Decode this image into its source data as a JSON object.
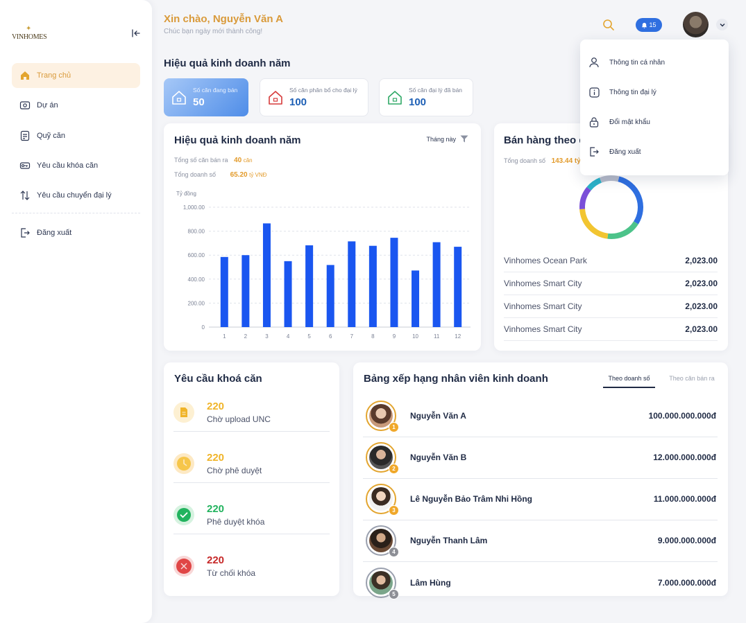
{
  "brand": {
    "logo_text": "VINHOMES"
  },
  "sidebar": {
    "items": [
      {
        "label": "Trang chủ",
        "icon": "home-icon",
        "active": true
      },
      {
        "label": "Dự án",
        "icon": "project-icon"
      },
      {
        "label": "Quỹ căn",
        "icon": "fund-icon"
      },
      {
        "label": "Yêu cầu khóa căn",
        "icon": "key-icon"
      },
      {
        "label": "Yêu cầu chuyển đại lý",
        "icon": "transfer-icon"
      }
    ],
    "logout": "Đăng xuất"
  },
  "header": {
    "greeting": "Xin chào, Nguyễn Văn A",
    "subtitle": "Chúc bạn ngày mới thành công!",
    "notification_count": "15"
  },
  "overview": {
    "title": "Hiệu quả kinh doanh năm",
    "stats": [
      {
        "label": "Số căn đang bán",
        "value": "50"
      },
      {
        "label": "Số căn phân bổ cho đại lý",
        "value": "100"
      },
      {
        "label": "Số căn đại lý đã bán",
        "value": "100"
      }
    ]
  },
  "business_chart": {
    "title": "Hiệu quả kinh doanh năm",
    "filter": "Tháng này",
    "total_units_label": "Tổng số căn bán ra",
    "total_units_value": "40",
    "total_units_unit": "căn",
    "total_revenue_label": "Tổng doanh số",
    "total_revenue_value": "65.20",
    "total_revenue_unit": "tỷ VNĐ"
  },
  "chart_data": {
    "type": "bar",
    "ylabel": "Tỷ đồng",
    "categories": [
      "1",
      "2",
      "3",
      "4",
      "5",
      "6",
      "7",
      "8",
      "9",
      "10",
      "11",
      "12"
    ],
    "values": [
      585,
      600,
      865,
      550,
      682,
      518,
      715,
      678,
      745,
      472,
      708,
      670
    ],
    "yticks": [
      "0",
      "200.00",
      "400.00",
      "600.00",
      "800.00",
      "1,000.00"
    ],
    "ylim": [
      0,
      1000
    ],
    "color": "#1a56f0"
  },
  "sales": {
    "title": "Bán hàng theo dự án",
    "total_label": "Tổng doanh số",
    "total_value": "143.44 tỷ",
    "donut": [
      {
        "value": 30,
        "color": "#2f6fe0"
      },
      {
        "value": 18,
        "color": "#4cc38a"
      },
      {
        "value": 22,
        "color": "#f2c531"
      },
      {
        "value": 12,
        "color": "#7b4fd8"
      },
      {
        "value": 8,
        "color": "#2bb3c9"
      },
      {
        "value": 10,
        "color": "#b7bccb"
      }
    ],
    "projects": [
      {
        "name": "Vinhomes Ocean Park",
        "value": "2,023.00"
      },
      {
        "name": "Vinhomes Smart City",
        "value": "2,023.00"
      },
      {
        "name": "Vinhomes Smart City",
        "value": "2,023.00"
      },
      {
        "name": "Vinhomes Smart City",
        "value": "2,023.00"
      }
    ]
  },
  "lock_requests": {
    "title": "Yêu cầu khoá căn",
    "items": [
      {
        "count": "220",
        "label": "Chờ upload UNC",
        "icon": "document-icon",
        "color": "#f0b429",
        "bg": "#fdf0d2"
      },
      {
        "count": "220",
        "label": "Chờ phê duyệt",
        "icon": "clock-icon",
        "color": "#f0b429",
        "bg": "#fde9c4"
      },
      {
        "count": "220",
        "label": "Phê duyệt khóa",
        "icon": "check-icon",
        "color": "#22b35e",
        "bg": "#d6f2e0"
      },
      {
        "count": "220",
        "label": "Từ chối khóa",
        "icon": "reject-icon",
        "color": "#c62828",
        "bg": "#f8d7d7"
      }
    ]
  },
  "ranking": {
    "title": "Bảng xếp hạng nhân viên kinh doanh",
    "tabs": [
      "Theo doanh số",
      "Theo căn bán ra"
    ],
    "rows": [
      {
        "rank": "1",
        "name": "Nguyễn Văn A",
        "amount": "100.000.000.000đ",
        "badge_color": "#f0a82a"
      },
      {
        "rank": "2",
        "name": "Nguyễn Văn B",
        "amount": "12.000.000.000đ",
        "badge_color": "#f0a82a"
      },
      {
        "rank": "3",
        "name": "Lê Nguyễn Bảo Trâm Nhi Hồng",
        "amount": "11.000.000.000đ",
        "badge_color": "#f0a82a"
      },
      {
        "rank": "4",
        "name": "Nguyễn Thanh Lâm",
        "amount": "9.000.000.000đ",
        "badge_color": "#8d8f96"
      },
      {
        "rank": "5",
        "name": "Lâm Hùng",
        "amount": "7.000.000.000đ",
        "badge_color": "#8d8f96"
      }
    ]
  },
  "user_menu": {
    "items": [
      {
        "label": "Thông tin cá nhân",
        "icon": "user-icon"
      },
      {
        "label": "Thông tin đại lý",
        "icon": "info-icon"
      },
      {
        "label": "Đổi mật khẩu",
        "icon": "lock-icon"
      },
      {
        "label": "Đăng xuất",
        "icon": "logout-icon"
      }
    ]
  }
}
